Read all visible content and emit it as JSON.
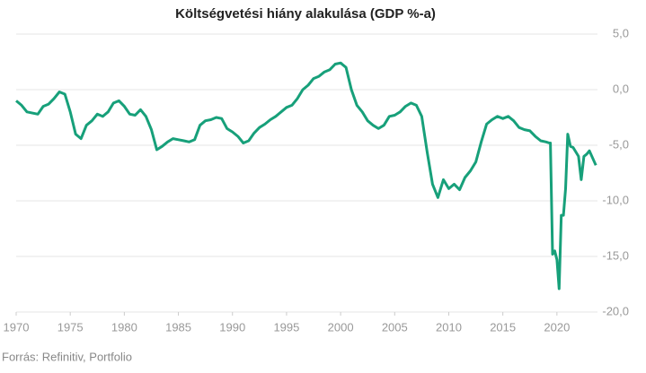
{
  "chart_data": {
    "type": "line",
    "title": "Költségvetési hiány alakulása (GDP %-a)",
    "source": "Forrás: Refinitiv, Portfolio",
    "x": [
      1970,
      1970.5,
      1971,
      1972,
      1972.5,
      1973,
      1973.5,
      1974,
      1974.5,
      1975,
      1975.5,
      1976,
      1976.5,
      1977,
      1977.5,
      1978,
      1978.5,
      1979,
      1979.5,
      1980,
      1980.5,
      1981,
      1981.5,
      1982,
      1982.5,
      1983,
      1983.5,
      1984,
      1984.5,
      1985,
      1985.5,
      1986,
      1986.5,
      1987,
      1987.5,
      1988,
      1988.5,
      1989,
      1989.5,
      1990,
      1990.5,
      1991,
      1991.5,
      1992,
      1992.5,
      1993,
      1993.5,
      1994,
      1994.5,
      1995,
      1995.5,
      1996,
      1996.5,
      1997,
      1997.5,
      1998,
      1998.5,
      1999,
      1999.5,
      2000,
      2000.5,
      2001,
      2001.5,
      2002,
      2002.5,
      2003,
      2003.5,
      2004,
      2004.5,
      2005,
      2005.5,
      2006,
      2006.5,
      2007,
      2007.5,
      2008,
      2008.5,
      2009,
      2009.5,
      2010,
      2010.5,
      2011,
      2011.5,
      2012,
      2012.5,
      2013,
      2013.5,
      2014,
      2014.5,
      2015,
      2015.5,
      2016,
      2016.5,
      2017,
      2017.5,
      2018,
      2018.5,
      2019,
      2019.3,
      2019.4,
      2019.6,
      2019.8,
      2020,
      2020.2,
      2020.4,
      2020.6,
      2020.8,
      2021,
      2021.25,
      2021.5,
      2022,
      2022.25,
      2022.5,
      2022.75,
      2023,
      2023.6
    ],
    "series": [
      {
        "name": "Költségvetési hiány",
        "color": "#17a07a",
        "values": [
          -1.0,
          -1.4,
          -2.0,
          -2.2,
          -1.5,
          -1.3,
          -0.8,
          -0.2,
          -0.4,
          -2.0,
          -4.0,
          -4.4,
          -3.2,
          -2.8,
          -2.2,
          -2.4,
          -2.0,
          -1.2,
          -1.0,
          -1.5,
          -2.2,
          -2.3,
          -1.8,
          -2.4,
          -3.6,
          -5.4,
          -5.1,
          -4.7,
          -4.4,
          -4.5,
          -4.6,
          -4.7,
          -4.5,
          -3.2,
          -2.8,
          -2.7,
          -2.5,
          -2.6,
          -3.5,
          -3.8,
          -4.2,
          -4.8,
          -4.6,
          -3.9,
          -3.4,
          -3.1,
          -2.7,
          -2.4,
          -2.0,
          -1.6,
          -1.4,
          -0.8,
          0.0,
          0.4,
          1.0,
          1.2,
          1.6,
          1.8,
          2.3,
          2.4,
          2.0,
          0.0,
          -1.4,
          -2.0,
          -2.8,
          -3.2,
          -3.5,
          -3.2,
          -2.4,
          -2.3,
          -2.0,
          -1.5,
          -1.2,
          -1.4,
          -2.4,
          -5.6,
          -8.5,
          -9.7,
          -8.1,
          -8.9,
          -8.5,
          -9.0,
          -7.9,
          -7.3,
          -6.5,
          -4.7,
          -3.1,
          -2.7,
          -2.4,
          -2.6,
          -2.4,
          -2.8,
          -3.4,
          -3.6,
          -3.7,
          -4.2,
          -4.6,
          -4.7,
          -4.8,
          -4.8,
          -14.8,
          -14.5,
          -15.3,
          -17.9,
          -11.3,
          -11.3,
          -8.9,
          -4.0,
          -5.1,
          -5.2,
          -6.0,
          -8.1,
          -6.0,
          -5.8,
          -5.5,
          -6.8
        ]
      }
    ],
    "xlim": [
      1970,
      2024
    ],
    "xticks": [
      1970,
      1975,
      1980,
      1985,
      1990,
      1995,
      2000,
      2005,
      2010,
      2015,
      2020
    ],
    "ylim": [
      -20,
      5
    ],
    "yticks": [
      {
        "value": 5,
        "label": "5,0"
      },
      {
        "value": 0,
        "label": "0,0"
      },
      {
        "value": -5,
        "label": "-5,0"
      },
      {
        "value": -10,
        "label": "-10,0"
      },
      {
        "value": -15,
        "label": "-15,0"
      },
      {
        "value": -20,
        "label": "-20,0"
      }
    ],
    "grid": true
  }
}
